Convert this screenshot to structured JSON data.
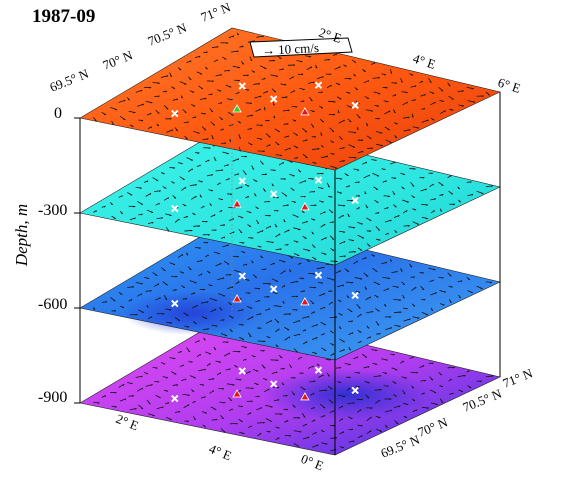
{
  "chart_data": {
    "type": "heatmap",
    "title": "1987-09",
    "ylabel": "Depth, m",
    "scale_label": "→ 10 cm/s",
    "depth_ticks": [
      "0",
      "-300",
      "-600",
      "-900"
    ],
    "top_lat_labels": [
      "71° N",
      "70.5° N",
      "70° N",
      "69.5° N"
    ],
    "top_lon_labels": [
      "2° E",
      "4° E",
      "6° E"
    ],
    "bottom_lon_labels": [
      "2° E",
      "4° E",
      "0° E"
    ],
    "bottom_lat_labels": [
      "71° N",
      "70.5° N",
      "70° N",
      "69.5° N"
    ],
    "layers": [
      {
        "depth": 0,
        "base_color": "#ff6a1a",
        "accent_color": "#e0300a"
      },
      {
        "depth": -300,
        "base_color": "#36f0e6",
        "accent_color": "#1fd6d6"
      },
      {
        "depth": -600,
        "base_color": "#2a86f0",
        "accent_color": "#1d4fd8"
      },
      {
        "depth": -900,
        "base_color": "#e040ef",
        "accent_color": "#3a2fd6"
      }
    ]
  }
}
